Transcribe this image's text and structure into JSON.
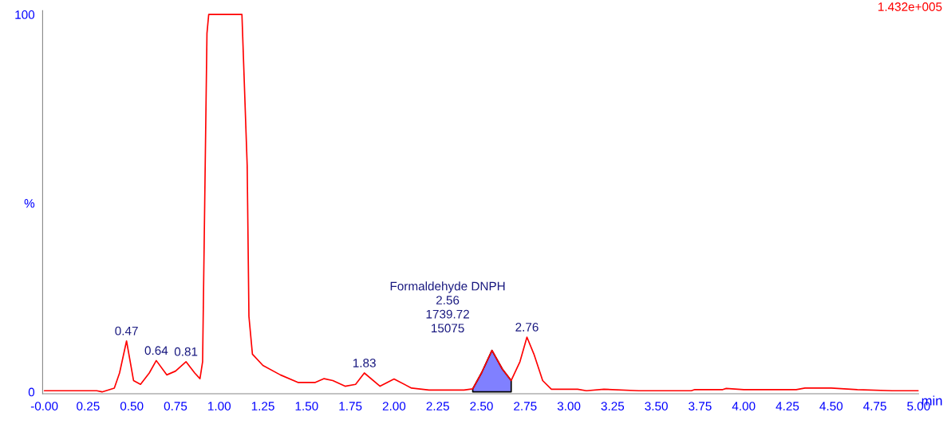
{
  "chart_data": {
    "type": "line",
    "series": [
      {
        "color": "#ff0000",
        "x": [
          0.0,
          0.3,
          0.33,
          0.4,
          0.43,
          0.47,
          0.51,
          0.55,
          0.6,
          0.64,
          0.7,
          0.75,
          0.81,
          0.86,
          0.89,
          0.905,
          0.93,
          0.94,
          1.13,
          1.16,
          1.17,
          1.19,
          1.25,
          1.35,
          1.45,
          1.55,
          1.6,
          1.65,
          1.72,
          1.78,
          1.83,
          1.92,
          2.0,
          2.1,
          2.2,
          2.4,
          2.45,
          2.5,
          2.56,
          2.62,
          2.67,
          2.72,
          2.76,
          2.8,
          2.85,
          2.9,
          3.05,
          3.1,
          3.2,
          3.4,
          3.7,
          3.72,
          3.88,
          3.9,
          4.0,
          4.3,
          4.35,
          4.5,
          4.65,
          4.85,
          5.0
        ],
        "values": [
          0.3,
          0.3,
          0,
          1,
          5,
          13.5,
          3,
          2,
          5,
          8.3,
          4.5,
          5.5,
          8,
          5,
          3.5,
          8,
          95,
          100,
          100,
          60,
          20,
          10,
          7,
          4.5,
          2.5,
          2.5,
          3.5,
          3,
          1.5,
          2,
          5,
          1.5,
          3.4,
          1,
          0.5,
          0.5,
          0.8,
          5,
          11,
          6,
          3,
          8,
          14.5,
          10,
          3,
          0.7,
          0.7,
          0.3,
          0.7,
          0.3,
          0.3,
          0.6,
          0.6,
          0.9,
          0.6,
          0.6,
          1.0,
          1.0,
          0.6,
          0.3,
          0.3
        ]
      },
      {
        "type": "area",
        "color": "#8080ff",
        "x": [
          2.45,
          2.5,
          2.56,
          2.62,
          2.67
        ],
        "values": [
          0.8,
          5,
          11,
          6,
          3
        ]
      }
    ],
    "xlim": [
      -0.01,
      5.0
    ],
    "xticks": [
      {
        "value": 0,
        "label": "-0.00"
      },
      {
        "value": 0.25,
        "label": "0.25"
      },
      {
        "value": 0.5,
        "label": "0.50"
      },
      {
        "value": 0.75,
        "label": "0.75"
      },
      {
        "value": 1.0,
        "label": "1.00"
      },
      {
        "value": 1.25,
        "label": "1.25"
      },
      {
        "value": 1.5,
        "label": "1.50"
      },
      {
        "value": 1.75,
        "label": "1.75"
      },
      {
        "value": 2.0,
        "label": "2.00"
      },
      {
        "value": 2.25,
        "label": "2.25"
      },
      {
        "value": 2.5,
        "label": "2.50"
      },
      {
        "value": 2.75,
        "label": "2.75"
      },
      {
        "value": 3.0,
        "label": "3.00"
      },
      {
        "value": 3.25,
        "label": "3.25"
      },
      {
        "value": 3.5,
        "label": "3.50"
      },
      {
        "value": 3.75,
        "label": "3.75"
      },
      {
        "value": 4.0,
        "label": "4.00"
      },
      {
        "value": 4.25,
        "label": "4.25"
      },
      {
        "value": 4.5,
        "label": "4.50"
      },
      {
        "value": 4.75,
        "label": "4.75"
      },
      {
        "value": 5.0,
        "label": "5.00"
      }
    ],
    "ylim": [
      -0.5,
      101
    ],
    "yticks": [
      0,
      {
        "value": 50,
        "label": "%"
      },
      100
    ],
    "xlabel": "min",
    "grid": false,
    "annotations": [
      {
        "text": "0.47",
        "x": 0.47,
        "y": 13.5
      },
      {
        "text": "0.64",
        "x": 0.64,
        "y": 8.3
      },
      {
        "text": "0.81",
        "x": 0.81,
        "y": 8
      },
      {
        "text": "1.83",
        "x": 1.83,
        "y": 5
      },
      {
        "text": "Formaldehyde DNPH\n2.56\n1739.72\n15075",
        "x": 2.56,
        "y": 11
      },
      {
        "text": "2.76",
        "x": 2.76,
        "y": 14.5
      },
      "1.432e+005"
    ]
  }
}
